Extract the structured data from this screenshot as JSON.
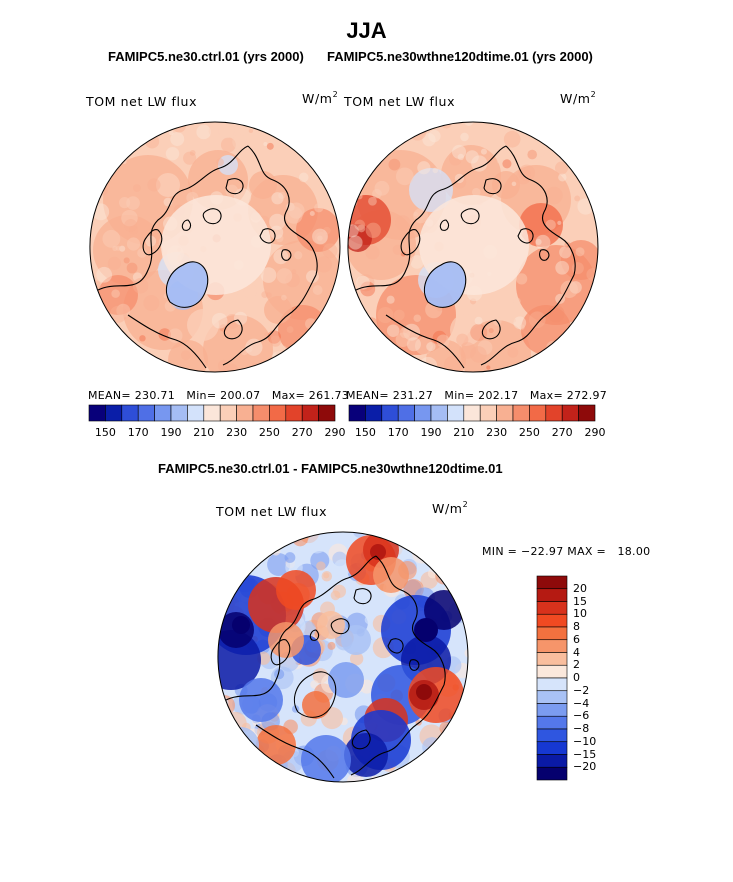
{
  "title": "JJA",
  "panels": {
    "left": {
      "subtitle": "FAMIPC5.ne30.ctrl.01 (yrs 2000)",
      "variable": "TOM net LW flux",
      "unit_base": "W/m",
      "unit_exp": "2",
      "stats": {
        "mean_label": "MEAN=",
        "mean": "230.71",
        "min_label": "Min=",
        "min": "200.07",
        "max_label": "Max=",
        "max": "261.73"
      },
      "colorbar_ticks": [
        "150",
        "170",
        "190",
        "210",
        "230",
        "250",
        "270",
        "290"
      ]
    },
    "right": {
      "subtitle": "FAMIPC5.ne30wthne120dtime.01 (yrs 2000)",
      "variable": "TOM net LW flux",
      "unit_base": "W/m",
      "unit_exp": "2",
      "stats": {
        "mean_label": "MEAN=",
        "mean": "231.27",
        "min_label": "Min=",
        "min": "202.17",
        "max_label": "Max=",
        "max": "272.97"
      },
      "colorbar_ticks": [
        "150",
        "170",
        "190",
        "210",
        "230",
        "250",
        "270",
        "290"
      ]
    },
    "diff": {
      "title": "FAMIPC5.ne30.ctrl.01 - FAMIPC5.ne30wthne120dtime.01",
      "variable": "TOM net LW flux",
      "unit_base": "W/m",
      "unit_exp": "2",
      "minmax": {
        "min_label": "MIN =",
        "min": "−22.97",
        "max_label": "MAX =",
        "max": "18.00"
      },
      "colorbar_ticks": [
        "20",
        "15",
        "10",
        "8",
        "6",
        "4",
        "2",
        "0",
        "−2",
        "−4",
        "−6",
        "−8",
        "−10",
        "−15",
        "−20"
      ]
    }
  },
  "colors": {
    "abs_scale": [
      "#08007a",
      "#0a1ea8",
      "#2e4ed8",
      "#4f6fe6",
      "#7797f0",
      "#a5bdf4",
      "#d3e2fb",
      "#fbe6da",
      "#fbcfb8",
      "#f8b092",
      "#f58d6c",
      "#f26a47",
      "#e2432a",
      "#c2221a",
      "#8e0a0a"
    ],
    "diff_scale": [
      "#8e0a0a",
      "#b51a12",
      "#d8321c",
      "#f04a22",
      "#f3713f",
      "#f6956a",
      "#f9be9e",
      "#fbe8dc",
      "#d6e4fb",
      "#a9c2f5",
      "#7b9cf0",
      "#5478ea",
      "#2f56e0",
      "#1638d2",
      "#0a1aa6",
      "#05006e"
    ]
  },
  "chart_data": [
    {
      "type": "heatmap",
      "projection": "north-polar-stereographic",
      "title": "FAMIPC5.ne30.ctrl.01 (yrs 2000)",
      "variable": "TOM net LW flux",
      "units": "W/m2",
      "mean": 230.71,
      "min": 200.07,
      "max": 261.73,
      "contour_levels": [
        150,
        160,
        170,
        180,
        190,
        200,
        210,
        220,
        230,
        240,
        250,
        260,
        270,
        280,
        290
      ]
    },
    {
      "type": "heatmap",
      "projection": "north-polar-stereographic",
      "title": "FAMIPC5.ne30wthne120dtime.01 (yrs 2000)",
      "variable": "TOM net LW flux",
      "units": "W/m2",
      "mean": 231.27,
      "min": 202.17,
      "max": 272.97,
      "contour_levels": [
        150,
        160,
        170,
        180,
        190,
        200,
        210,
        220,
        230,
        240,
        250,
        260,
        270,
        280,
        290
      ]
    },
    {
      "type": "heatmap",
      "projection": "north-polar-stereographic",
      "title": "FAMIPC5.ne30.ctrl.01 - FAMIPC5.ne30wthne120dtime.01",
      "variable": "TOM net LW flux",
      "units": "W/m2",
      "min": -22.97,
      "max": 18.0,
      "contour_levels": [
        -20,
        -15,
        -10,
        -8,
        -6,
        -4,
        -2,
        0,
        2,
        4,
        6,
        8,
        10,
        15,
        20
      ]
    }
  ]
}
